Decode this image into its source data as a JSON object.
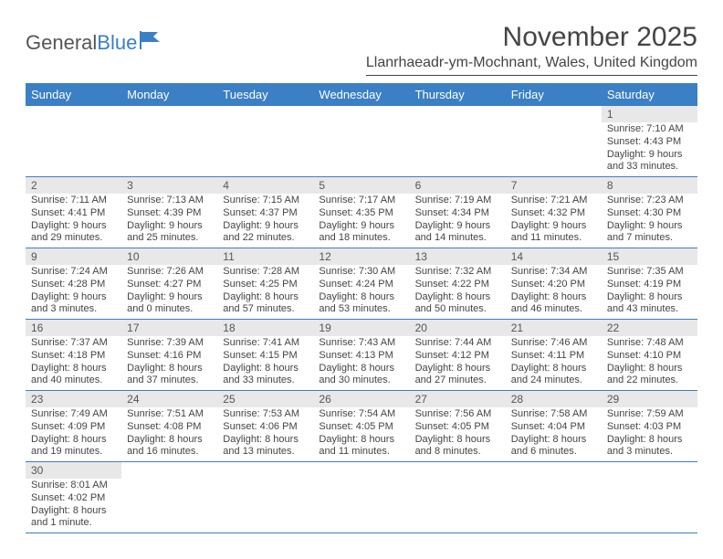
{
  "logo": {
    "text1": "General",
    "text2": "Blue"
  },
  "title": "November 2025",
  "location": "Llanrhaeadr-ym-Mochnant, Wales, United Kingdom",
  "colors": {
    "header_bg": "#3b7fc4",
    "header_text": "#ffffff",
    "daynum_bg": "#e8e8e8",
    "text": "#444444",
    "row_divider": "#3b7fc4"
  },
  "day_headers": [
    "Sunday",
    "Monday",
    "Tuesday",
    "Wednesday",
    "Thursday",
    "Friday",
    "Saturday"
  ],
  "weeks": [
    [
      {
        "blank": true
      },
      {
        "blank": true
      },
      {
        "blank": true
      },
      {
        "blank": true
      },
      {
        "blank": true
      },
      {
        "blank": true
      },
      {
        "n": "1",
        "sunrise": "Sunrise: 7:10 AM",
        "sunset": "Sunset: 4:43 PM",
        "daylight": "Daylight: 9 hours and 33 minutes."
      }
    ],
    [
      {
        "n": "2",
        "sunrise": "Sunrise: 7:11 AM",
        "sunset": "Sunset: 4:41 PM",
        "daylight": "Daylight: 9 hours and 29 minutes."
      },
      {
        "n": "3",
        "sunrise": "Sunrise: 7:13 AM",
        "sunset": "Sunset: 4:39 PM",
        "daylight": "Daylight: 9 hours and 25 minutes."
      },
      {
        "n": "4",
        "sunrise": "Sunrise: 7:15 AM",
        "sunset": "Sunset: 4:37 PM",
        "daylight": "Daylight: 9 hours and 22 minutes."
      },
      {
        "n": "5",
        "sunrise": "Sunrise: 7:17 AM",
        "sunset": "Sunset: 4:35 PM",
        "daylight": "Daylight: 9 hours and 18 minutes."
      },
      {
        "n": "6",
        "sunrise": "Sunrise: 7:19 AM",
        "sunset": "Sunset: 4:34 PM",
        "daylight": "Daylight: 9 hours and 14 minutes."
      },
      {
        "n": "7",
        "sunrise": "Sunrise: 7:21 AM",
        "sunset": "Sunset: 4:32 PM",
        "daylight": "Daylight: 9 hours and 11 minutes."
      },
      {
        "n": "8",
        "sunrise": "Sunrise: 7:23 AM",
        "sunset": "Sunset: 4:30 PM",
        "daylight": "Daylight: 9 hours and 7 minutes."
      }
    ],
    [
      {
        "n": "9",
        "sunrise": "Sunrise: 7:24 AM",
        "sunset": "Sunset: 4:28 PM",
        "daylight": "Daylight: 9 hours and 3 minutes."
      },
      {
        "n": "10",
        "sunrise": "Sunrise: 7:26 AM",
        "sunset": "Sunset: 4:27 PM",
        "daylight": "Daylight: 9 hours and 0 minutes."
      },
      {
        "n": "11",
        "sunrise": "Sunrise: 7:28 AM",
        "sunset": "Sunset: 4:25 PM",
        "daylight": "Daylight: 8 hours and 57 minutes."
      },
      {
        "n": "12",
        "sunrise": "Sunrise: 7:30 AM",
        "sunset": "Sunset: 4:24 PM",
        "daylight": "Daylight: 8 hours and 53 minutes."
      },
      {
        "n": "13",
        "sunrise": "Sunrise: 7:32 AM",
        "sunset": "Sunset: 4:22 PM",
        "daylight": "Daylight: 8 hours and 50 minutes."
      },
      {
        "n": "14",
        "sunrise": "Sunrise: 7:34 AM",
        "sunset": "Sunset: 4:20 PM",
        "daylight": "Daylight: 8 hours and 46 minutes."
      },
      {
        "n": "15",
        "sunrise": "Sunrise: 7:35 AM",
        "sunset": "Sunset: 4:19 PM",
        "daylight": "Daylight: 8 hours and 43 minutes."
      }
    ],
    [
      {
        "n": "16",
        "sunrise": "Sunrise: 7:37 AM",
        "sunset": "Sunset: 4:18 PM",
        "daylight": "Daylight: 8 hours and 40 minutes."
      },
      {
        "n": "17",
        "sunrise": "Sunrise: 7:39 AM",
        "sunset": "Sunset: 4:16 PM",
        "daylight": "Daylight: 8 hours and 37 minutes."
      },
      {
        "n": "18",
        "sunrise": "Sunrise: 7:41 AM",
        "sunset": "Sunset: 4:15 PM",
        "daylight": "Daylight: 8 hours and 33 minutes."
      },
      {
        "n": "19",
        "sunrise": "Sunrise: 7:43 AM",
        "sunset": "Sunset: 4:13 PM",
        "daylight": "Daylight: 8 hours and 30 minutes."
      },
      {
        "n": "20",
        "sunrise": "Sunrise: 7:44 AM",
        "sunset": "Sunset: 4:12 PM",
        "daylight": "Daylight: 8 hours and 27 minutes."
      },
      {
        "n": "21",
        "sunrise": "Sunrise: 7:46 AM",
        "sunset": "Sunset: 4:11 PM",
        "daylight": "Daylight: 8 hours and 24 minutes."
      },
      {
        "n": "22",
        "sunrise": "Sunrise: 7:48 AM",
        "sunset": "Sunset: 4:10 PM",
        "daylight": "Daylight: 8 hours and 22 minutes."
      }
    ],
    [
      {
        "n": "23",
        "sunrise": "Sunrise: 7:49 AM",
        "sunset": "Sunset: 4:09 PM",
        "daylight": "Daylight: 8 hours and 19 minutes."
      },
      {
        "n": "24",
        "sunrise": "Sunrise: 7:51 AM",
        "sunset": "Sunset: 4:08 PM",
        "daylight": "Daylight: 8 hours and 16 minutes."
      },
      {
        "n": "25",
        "sunrise": "Sunrise: 7:53 AM",
        "sunset": "Sunset: 4:06 PM",
        "daylight": "Daylight: 8 hours and 13 minutes."
      },
      {
        "n": "26",
        "sunrise": "Sunrise: 7:54 AM",
        "sunset": "Sunset: 4:05 PM",
        "daylight": "Daylight: 8 hours and 11 minutes."
      },
      {
        "n": "27",
        "sunrise": "Sunrise: 7:56 AM",
        "sunset": "Sunset: 4:05 PM",
        "daylight": "Daylight: 8 hours and 8 minutes."
      },
      {
        "n": "28",
        "sunrise": "Sunrise: 7:58 AM",
        "sunset": "Sunset: 4:04 PM",
        "daylight": "Daylight: 8 hours and 6 minutes."
      },
      {
        "n": "29",
        "sunrise": "Sunrise: 7:59 AM",
        "sunset": "Sunset: 4:03 PM",
        "daylight": "Daylight: 8 hours and 3 minutes."
      }
    ],
    [
      {
        "n": "30",
        "sunrise": "Sunrise: 8:01 AM",
        "sunset": "Sunset: 4:02 PM",
        "daylight": "Daylight: 8 hours and 1 minute."
      },
      {
        "blank": true
      },
      {
        "blank": true
      },
      {
        "blank": true
      },
      {
        "blank": true
      },
      {
        "blank": true
      },
      {
        "blank": true
      }
    ]
  ]
}
